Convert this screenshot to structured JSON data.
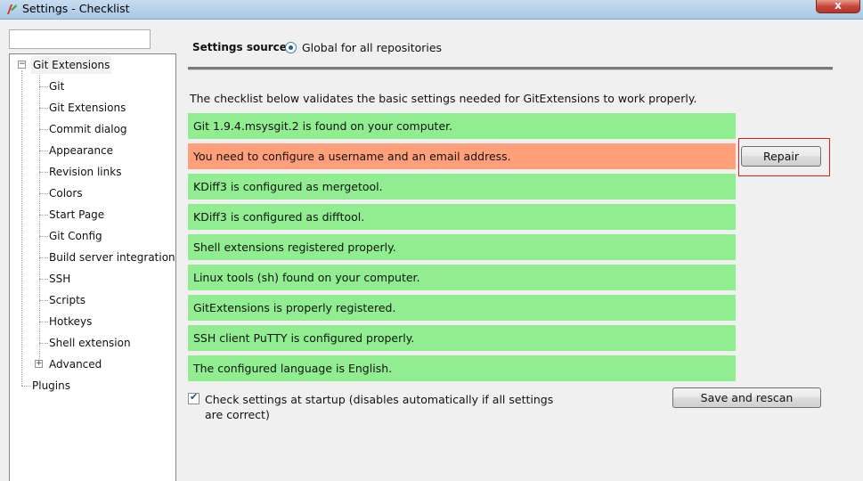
{
  "window": {
    "title": "Settings - Checklist",
    "close_label": "x"
  },
  "left": {
    "search_value": "",
    "root_label": "Git Extensions",
    "items": [
      "Git",
      "Git Extensions",
      "Commit dialog",
      "Appearance",
      "Revision links",
      "Colors",
      "Start Page",
      "Git Config",
      "Build server integration",
      "SSH",
      "Scripts",
      "Hotkeys",
      "Shell extension",
      "Advanced"
    ],
    "plugins_label": "Plugins"
  },
  "settings_source": {
    "label": "Settings source:",
    "value": "Global for all repositories"
  },
  "intro": "The checklist below validates the basic settings needed for GitExtensions to work properly.",
  "checks": [
    {
      "text": "Git 1.9.4.msysgit.2 is found on your computer.",
      "status": "ok"
    },
    {
      "text": "You need to configure a username and an email address.",
      "status": "error"
    },
    {
      "text": "KDiff3 is configured as mergetool.",
      "status": "ok"
    },
    {
      "text": "KDiff3 is configured as difftool.",
      "status": "ok"
    },
    {
      "text": "Shell extensions registered properly.",
      "status": "ok"
    },
    {
      "text": "Linux tools (sh) found on your computer.",
      "status": "ok"
    },
    {
      "text": "GitExtensions is properly registered.",
      "status": "ok"
    },
    {
      "text": "SSH client PuTTY is configured properly.",
      "status": "ok"
    },
    {
      "text": "The configured language is English.",
      "status": "ok"
    }
  ],
  "repair_label": "Repair",
  "startup_check": {
    "label": "Check settings at startup (disables automatically if all settings are correct)",
    "checked": true
  },
  "save_label": "Save and rescan",
  "colors": {
    "ok": "#90ee90",
    "error": "#ffa07a",
    "highlight": "#e02020"
  }
}
